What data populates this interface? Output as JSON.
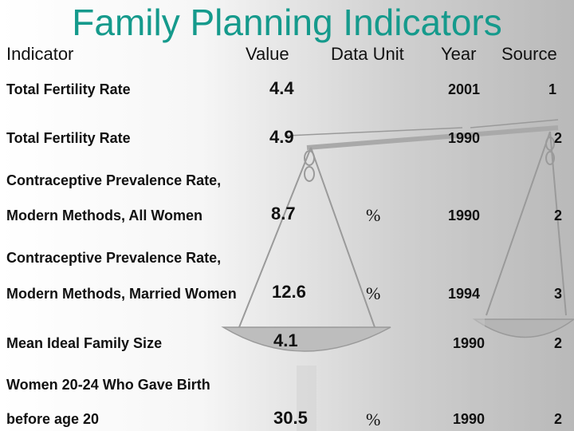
{
  "title": "Family Planning Indicators",
  "headers": {
    "indicator": "Indicator",
    "value": "Value",
    "unit": "Data Unit",
    "year": "Year",
    "source": "Source"
  },
  "rows": [
    {
      "line1": "Total Fertility Rate",
      "line2": "",
      "value": "4.4",
      "unit": "",
      "year": "2001",
      "source": "1"
    },
    {
      "line1": "Total Fertility Rate",
      "line2": "",
      "value": "4.9",
      "unit": "",
      "year": "1990",
      "source": "2"
    },
    {
      "line1": "Contraceptive Prevalence Rate,",
      "line2": "Modern Methods, All Women",
      "value": "8.7",
      "unit": "%",
      "year": "1990",
      "source": "2"
    },
    {
      "line1": "Contraceptive Prevalence Rate,",
      "line2": "Modern Methods, Married Women",
      "value": "12.6",
      "unit": "%",
      "year": "1994",
      "source": "3"
    },
    {
      "line1": "Mean Ideal Family Size",
      "line2": "",
      "value": "4.1",
      "unit": "",
      "year": "1990",
      "source": "2"
    },
    {
      "line1": "Women 20-24 Who Gave Birth",
      "line2": "before age 20",
      "value": "30.5",
      "unit": "%",
      "year": "1990",
      "source": "2"
    }
  ],
  "colors": {
    "title": "#159a8c"
  }
}
